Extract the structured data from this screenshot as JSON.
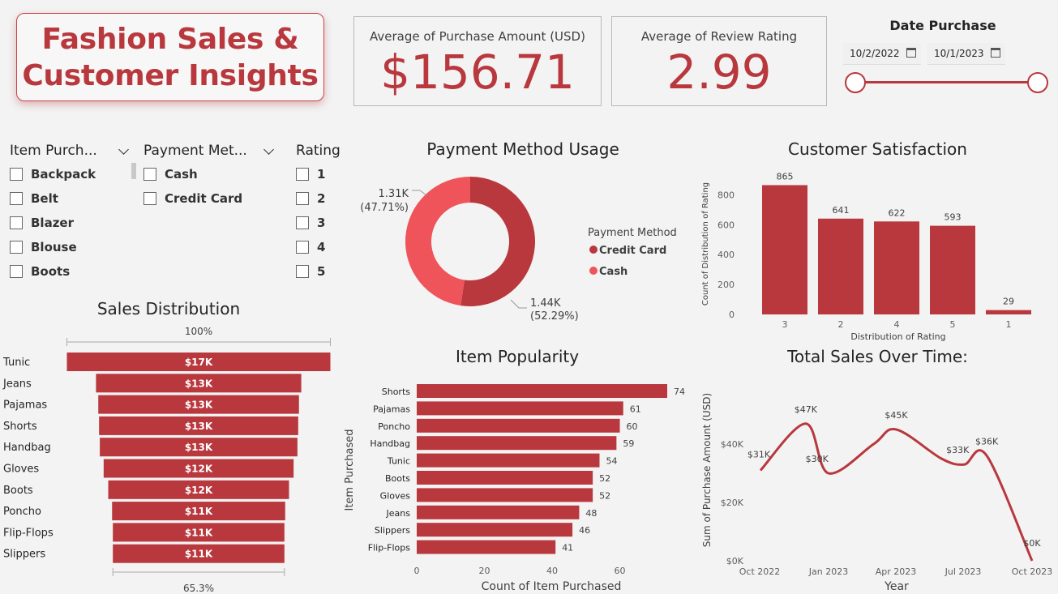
{
  "header": {
    "title_line1": "Fashion Sales &",
    "title_line2": "Customer Insights"
  },
  "kpis": {
    "avg_purchase": {
      "label": "Average of Purchase Amount (USD)",
      "value": "$156.71"
    },
    "avg_rating": {
      "label": "Average of Review Rating",
      "value": "2.99"
    }
  },
  "date_filter": {
    "title": "Date Purchase",
    "start": "10/2/2022",
    "end": "10/1/2023"
  },
  "slicers": {
    "item": {
      "title": "Item Purch...",
      "items": [
        "Backpack",
        "Belt",
        "Blazer",
        "Blouse",
        "Boots"
      ]
    },
    "payment": {
      "title": "Payment Met...",
      "items": [
        "Cash",
        "Credit Card"
      ]
    },
    "rating": {
      "title": "Rating",
      "items": [
        "1",
        "2",
        "3",
        "4",
        "5"
      ]
    }
  },
  "colors": {
    "accent": "#b8383d",
    "accent_light": "#ee5459"
  },
  "chart_data": [
    {
      "id": "payment",
      "type": "pie",
      "title": "Payment Method Usage",
      "legend_title": "Payment Method",
      "legend_position": "right",
      "slices": [
        {
          "name": "Credit Card",
          "value": 1440,
          "label": "1.44K",
          "pct": "(52.29%)",
          "color": "#b8383d"
        },
        {
          "name": "Cash",
          "value": 1310,
          "label": "1.31K",
          "pct": "(47.71%)",
          "color": "#ee5459"
        }
      ]
    },
    {
      "id": "satisfaction",
      "type": "bar",
      "title": "Customer Satisfaction",
      "xlabel": "Distribution of Rating",
      "ylabel": "Count of Distribution of Rating",
      "categories": [
        "3",
        "2",
        "4",
        "5",
        "1"
      ],
      "values": [
        865,
        641,
        622,
        593,
        29
      ],
      "yticks": [
        "0",
        "200",
        "400",
        "600",
        "800"
      ],
      "ylim": [
        0,
        900
      ]
    },
    {
      "id": "funnel",
      "type": "bar",
      "title": "Sales Distribution",
      "top_label": "100%",
      "bottom_label": "65.3%",
      "categories": [
        "Tunic",
        "Jeans",
        "Pajamas",
        "Shorts",
        "Handbag",
        "Gloves",
        "Boots",
        "Poncho",
        "Flip-Flops",
        "Slippers"
      ],
      "values": [
        17.2,
        13.4,
        13.1,
        13.0,
        12.9,
        12.4,
        11.8,
        11.3,
        11.2,
        11.2
      ],
      "labels": [
        "$17K",
        "$13K",
        "$13K",
        "$13K",
        "$13K",
        "$12K",
        "$12K",
        "$11K",
        "$11K",
        "$11K"
      ]
    },
    {
      "id": "popularity",
      "type": "bar",
      "title": "Item Popularity",
      "xlabel": "Count of Item Purchased",
      "ylabel": "Item Purchased",
      "categories": [
        "Shorts",
        "Pajamas",
        "Poncho",
        "Handbag",
        "Tunic",
        "Boots",
        "Gloves",
        "Jeans",
        "Slippers",
        "Flip-Flops"
      ],
      "values": [
        74,
        61,
        60,
        59,
        54,
        52,
        52,
        48,
        46,
        41
      ],
      "xticks": [
        "0",
        "20",
        "40",
        "60"
      ],
      "xlim": [
        0,
        74
      ]
    },
    {
      "id": "sales_time",
      "type": "line",
      "title": "Total Sales Over Time:",
      "xlabel": "Year",
      "ylabel": "Sum of Purchase Amount (USD)",
      "x": [
        "2022-10",
        "2022-12",
        "2023-01",
        "2023-03",
        "2023-04",
        "2023-06",
        "2023-07",
        "2023-08",
        "2023-10"
      ],
      "values": [
        31,
        47,
        30,
        40,
        45,
        35,
        33,
        36,
        0
      ],
      "labels": [
        "$31K",
        "$47K",
        "$30K",
        "",
        "$45K",
        "",
        "$33K",
        "$36K",
        "$0K"
      ],
      "xticks": [
        "Oct 2022",
        "Jan 2023",
        "Apr 2023",
        "Jul 2023",
        "Oct 2023"
      ],
      "yticks": [
        "$0K",
        "$20K",
        "$40K"
      ],
      "ylim": [
        0,
        50
      ]
    }
  ]
}
